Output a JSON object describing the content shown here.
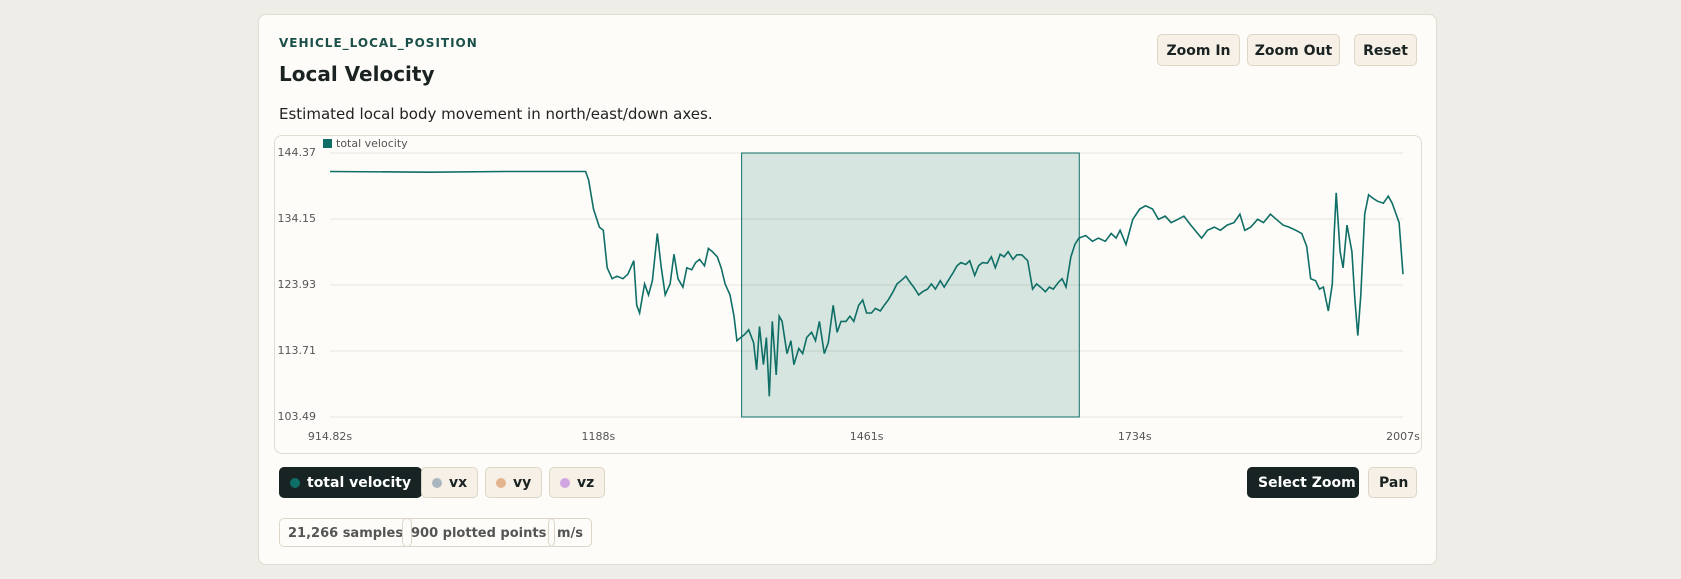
{
  "header": {
    "topic": "VEHICLE_LOCAL_POSITION",
    "title": "Local Velocity",
    "description": "Estimated local body movement in north/east/down axes."
  },
  "zoom_buttons": [
    "Zoom In",
    "Zoom Out",
    "Reset"
  ],
  "chart_data": {
    "type": "line",
    "x": [
      914.82,
      1016,
      1093,
      1175,
      1178,
      1183,
      1189,
      1193,
      1197,
      1202,
      1207,
      1213,
      1218,
      1224,
      1227,
      1230,
      1235,
      1239,
      1243,
      1248,
      1252,
      1256,
      1261,
      1265,
      1269,
      1274,
      1278,
      1283,
      1287,
      1291,
      1296,
      1300,
      1304,
      1309,
      1313,
      1317,
      1322,
      1326,
      1329,
      1333,
      1337,
      1341,
      1346,
      1349,
      1352,
      1356,
      1359,
      1362,
      1365,
      1369,
      1372,
      1375,
      1380,
      1384,
      1387,
      1392,
      1396,
      1400,
      1405,
      1409,
      1413,
      1418,
      1422,
      1427,
      1431,
      1435,
      1440,
      1444,
      1448,
      1453,
      1457,
      1461,
      1466,
      1470,
      1475,
      1479,
      1483,
      1488,
      1492,
      1496,
      1501,
      1505,
      1509,
      1514,
      1518,
      1523,
      1527,
      1531,
      1536,
      1540,
      1544,
      1549,
      1553,
      1557,
      1562,
      1566,
      1571,
      1575,
      1579,
      1584,
      1588,
      1592,
      1597,
      1601,
      1605,
      1610,
      1614,
      1619,
      1625,
      1630,
      1634,
      1638,
      1643,
      1647,
      1651,
      1656,
      1660,
      1664,
      1669,
      1673,
      1677,
      1684,
      1691,
      1697,
      1704,
      1710,
      1715,
      1719,
      1725,
      1732,
      1739,
      1745,
      1752,
      1758,
      1765,
      1771,
      1778,
      1784,
      1791,
      1798,
      1802,
      1808,
      1815,
      1821,
      1828,
      1835,
      1841,
      1846,
      1852,
      1859,
      1865,
      1872,
      1878,
      1885,
      1891,
      1898,
      1904,
      1909,
      1913,
      1918,
      1922,
      1926,
      1931,
      1935,
      1937,
      1939,
      1943,
      1946,
      1950,
      1955,
      1958,
      1961,
      1964,
      1968,
      1972,
      1976,
      1981,
      1987,
      1992,
      1996,
      2003,
      2007
    ],
    "series": [
      {
        "name": "total velocity",
        "color": "#0f6e66",
        "values": [
          141.5,
          141.4,
          141.5,
          141.5,
          140.2,
          135.7,
          132.9,
          132.4,
          126.6,
          124.9,
          125.3,
          124.9,
          125.6,
          127.7,
          120.8,
          119.6,
          124.1,
          122.4,
          124.6,
          131.9,
          126.6,
          122.4,
          124.1,
          128.7,
          124.9,
          123.6,
          126.6,
          126.3,
          127.4,
          127.9,
          126.9,
          129.6,
          129.1,
          128.3,
          126.6,
          124.1,
          122.4,
          119.1,
          115.3,
          115.8,
          116.3,
          117.0,
          115.0,
          110.8,
          117.5,
          111.6,
          115.8,
          106.7,
          118.3,
          110.0,
          119.1,
          118.3,
          113.3,
          115.3,
          111.6,
          114.1,
          113.3,
          115.8,
          116.6,
          115.3,
          118.3,
          113.3,
          115.0,
          120.8,
          116.6,
          118.3,
          118.3,
          119.1,
          118.3,
          120.8,
          121.6,
          119.6,
          119.6,
          120.3,
          119.9,
          120.8,
          121.6,
          122.9,
          124.1,
          124.6,
          125.3,
          124.4,
          123.6,
          122.4,
          122.9,
          123.3,
          124.1,
          123.3,
          124.6,
          123.6,
          124.6,
          125.8,
          126.9,
          127.4,
          127.1,
          127.7,
          125.4,
          126.9,
          127.4,
          127.3,
          128.3,
          126.6,
          128.7,
          128.3,
          129.1,
          127.9,
          128.6,
          128.6,
          127.7,
          123.3,
          124.1,
          123.6,
          122.9,
          123.6,
          123.3,
          124.3,
          124.9,
          123.6,
          128.3,
          130.2,
          131.2,
          131.6,
          130.7,
          131.2,
          130.7,
          131.9,
          131.2,
          132.4,
          130.2,
          134.1,
          135.7,
          136.2,
          135.7,
          134.1,
          134.6,
          133.6,
          134.1,
          134.6,
          133.2,
          131.9,
          131.2,
          132.4,
          132.9,
          132.4,
          133.2,
          133.6,
          134.9,
          132.4,
          132.9,
          134.1,
          133.6,
          134.9,
          134.1,
          133.2,
          132.9,
          132.4,
          131.9,
          129.9,
          124.9,
          124.6,
          123.3,
          123.6,
          119.9,
          124.1,
          131.9,
          138.2,
          129.1,
          126.6,
          133.2,
          129.1,
          121.6,
          116.1,
          122.4,
          134.9,
          137.9,
          137.4,
          136.9,
          136.6,
          137.7,
          136.6,
          133.6,
          125.6
        ]
      }
    ],
    "xlim": [
      914.82,
      2007
    ],
    "xticks": [
      {
        "value": 914.82,
        "label": "914.82s"
      },
      {
        "value": 1188,
        "label": "1188s"
      },
      {
        "value": 1461,
        "label": "1461s"
      },
      {
        "value": 1734,
        "label": "1734s"
      },
      {
        "value": 2007,
        "label": "2007s"
      }
    ],
    "ylim": [
      103.49,
      144.37
    ],
    "yticks": [
      103.49,
      113.71,
      123.93,
      134.15,
      144.37
    ],
    "grid": true,
    "selection": [
      1333.8,
      1677.5
    ],
    "selection_color": "#0f6e66"
  },
  "toggles": [
    {
      "label": "total velocity",
      "color": "#0f6e66"
    },
    {
      "label": "vx",
      "color": "#a9b6bf"
    },
    {
      "label": "vy",
      "color": "#e3b58e"
    },
    {
      "label": "vz",
      "color": "#cfa6e0"
    }
  ],
  "mode_buttons": [
    "Select Zoom",
    "Pan"
  ],
  "stats": [
    "21,266 samples",
    "900 plotted points",
    "m/s"
  ]
}
